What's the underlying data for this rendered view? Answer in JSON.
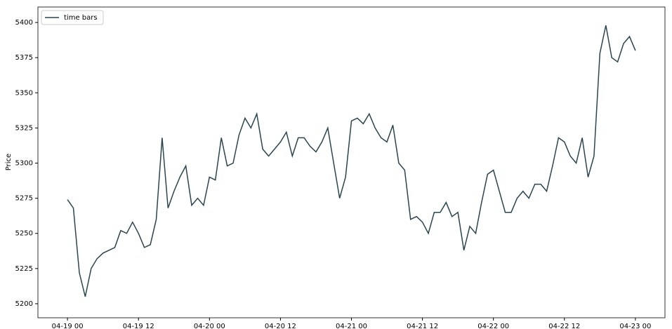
{
  "chart_data": {
    "type": "line",
    "ylabel": "Price",
    "legend": "upper left",
    "x": [
      "04-19 00",
      "04-19 01",
      "04-19 02",
      "04-19 03",
      "04-19 04",
      "04-19 05",
      "04-19 06",
      "04-19 07",
      "04-19 08",
      "04-19 09",
      "04-19 10",
      "04-19 11",
      "04-19 12",
      "04-19 13",
      "04-19 14",
      "04-19 15",
      "04-19 16",
      "04-19 17",
      "04-19 18",
      "04-19 19",
      "04-19 20",
      "04-19 21",
      "04-19 22",
      "04-19 23",
      "04-20 00",
      "04-20 01",
      "04-20 02",
      "04-20 03",
      "04-20 04",
      "04-20 05",
      "04-20 06",
      "04-20 07",
      "04-20 08",
      "04-20 09",
      "04-20 10",
      "04-20 11",
      "04-20 12",
      "04-20 13",
      "04-20 14",
      "04-20 15",
      "04-20 16",
      "04-20 17",
      "04-20 18",
      "04-20 19",
      "04-20 20",
      "04-20 21",
      "04-20 22",
      "04-20 23",
      "04-21 00",
      "04-21 01",
      "04-21 02",
      "04-21 03",
      "04-21 04",
      "04-21 05",
      "04-21 06",
      "04-21 07",
      "04-21 08",
      "04-21 09",
      "04-21 10",
      "04-21 11",
      "04-21 12",
      "04-21 13",
      "04-21 14",
      "04-21 15",
      "04-21 16",
      "04-21 17",
      "04-21 18",
      "04-21 19",
      "04-21 20",
      "04-21 21",
      "04-21 22",
      "04-21 23",
      "04-22 00",
      "04-22 01",
      "04-22 02",
      "04-22 03",
      "04-22 04",
      "04-22 05",
      "04-22 06",
      "04-22 07",
      "04-22 08",
      "04-22 09",
      "04-22 10",
      "04-22 11",
      "04-22 12",
      "04-22 13",
      "04-22 14",
      "04-22 15",
      "04-22 16",
      "04-22 17",
      "04-22 18",
      "04-22 19",
      "04-22 20",
      "04-22 21",
      "04-22 22",
      "04-22 23",
      "04-23 00"
    ],
    "series": [
      {
        "name": "time bars",
        "color": "#2a4650",
        "values": [
          5274,
          5268,
          5222,
          5205,
          5225,
          5232,
          5236,
          5238,
          5240,
          5252,
          5250,
          5258,
          5250,
          5240,
          5242,
          5260,
          5318,
          5268,
          5280,
          5290,
          5298,
          5270,
          5275,
          5270,
          5290,
          5288,
          5318,
          5298,
          5300,
          5320,
          5332,
          5325,
          5335,
          5310,
          5305,
          5310,
          5315,
          5322,
          5305,
          5318,
          5318,
          5312,
          5308,
          5315,
          5325,
          5300,
          5275,
          5290,
          5330,
          5332,
          5328,
          5335,
          5325,
          5318,
          5315,
          5327,
          5300,
          5295,
          5260,
          5262,
          5258,
          5250,
          5265,
          5265,
          5272,
          5262,
          5265,
          5238,
          5255,
          5250,
          5272,
          5292,
          5295,
          5280,
          5265,
          5265,
          5275,
          5280,
          5275,
          5285,
          5285,
          5280,
          5298,
          5318,
          5315,
          5305,
          5300,
          5318,
          5290,
          5305,
          5378,
          5398,
          5375,
          5372,
          5385,
          5390,
          5380
        ]
      }
    ],
    "xlim": [
      "04-18 19",
      "04-23 05"
    ],
    "xticks": [
      "04-19 00",
      "04-19 12",
      "04-20 00",
      "04-20 12",
      "04-21 00",
      "04-21 12",
      "04-22 00",
      "04-22 12",
      "04-23 00"
    ],
    "ylim": [
      5190,
      5411
    ],
    "yticks": [
      5200,
      5225,
      5250,
      5275,
      5300,
      5325,
      5350,
      5375,
      5400
    ]
  }
}
